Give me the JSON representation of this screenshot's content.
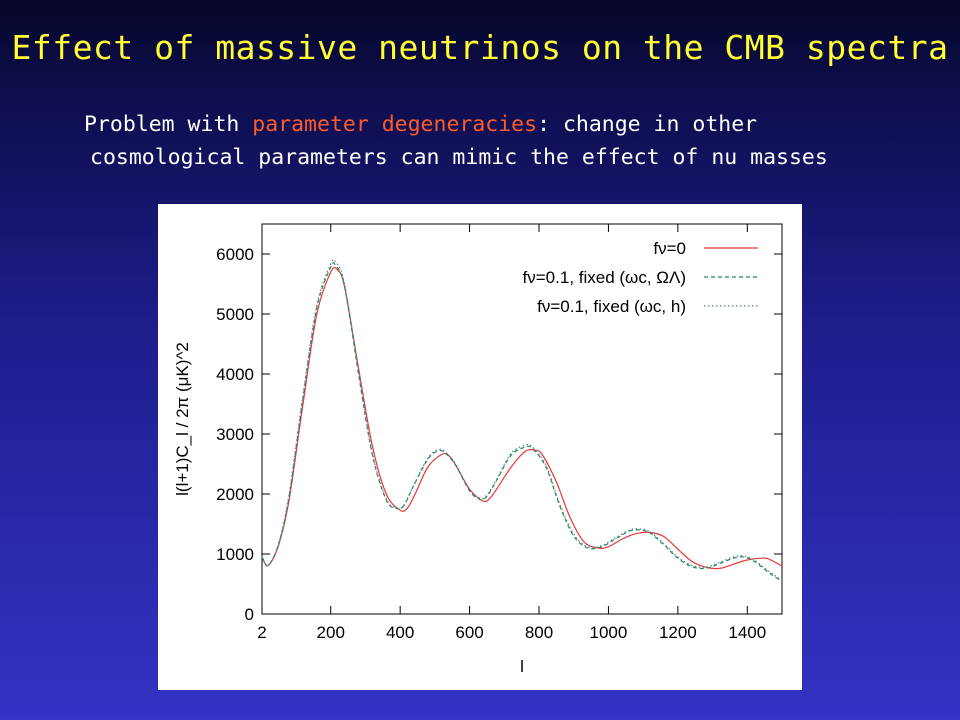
{
  "slide": {
    "title": "Effect of massive neutrinos on the CMB spectra",
    "subtitle_pre": "Problem with ",
    "subtitle_highlight": "parameter degeneracies",
    "subtitle_post": ": change in other",
    "subtitle_line2": "cosmological parameters can mimic the effect of nu masses",
    "colors": {
      "title": "#ffff33",
      "highlight": "#ff5a2a",
      "text": "#ffffff"
    }
  },
  "chart_data": {
    "type": "line",
    "xlabel": "l",
    "ylabel": "l(l+1)C_l / 2π (μK)^2",
    "xlim": [
      2,
      1500
    ],
    "ylim": [
      0,
      6500
    ],
    "x_ticks": [
      "2",
      "200",
      "400",
      "600",
      "800",
      "1000",
      "1200",
      "1400"
    ],
    "y_ticks": [
      "0",
      "1000",
      "2000",
      "3000",
      "4000",
      "5000",
      "6000"
    ],
    "legend_position": "top-right",
    "grid": false,
    "series": [
      {
        "name": "fν=0",
        "color": "#e8383a",
        "style": "solid",
        "x": [
          2,
          20,
          50,
          80,
          120,
          160,
          200,
          220,
          240,
          280,
          320,
          360,
          400,
          420,
          440,
          480,
          520,
          540,
          560,
          600,
          640,
          660,
          680,
          720,
          760,
          790,
          810,
          850,
          890,
          930,
          970,
          1000,
          1040,
          1080,
          1120,
          1160,
          1200,
          1240,
          1280,
          1320,
          1360,
          1400,
          1440,
          1460,
          1500
        ],
        "y": [
          950,
          810,
          1150,
          1900,
          3500,
          5000,
          5700,
          5730,
          5450,
          4100,
          2800,
          2000,
          1730,
          1760,
          1960,
          2450,
          2660,
          2640,
          2480,
          2080,
          1880,
          1940,
          2100,
          2450,
          2710,
          2730,
          2650,
          2200,
          1600,
          1200,
          1100,
          1120,
          1250,
          1340,
          1360,
          1290,
          1080,
          880,
          780,
          760,
          830,
          900,
          930,
          920,
          800
        ]
      },
      {
        "name": "fν=0.1, fixed (ωc, ΩΛ)",
        "color": "#1e8a5a",
        "style": "dashed",
        "x": [
          2,
          20,
          50,
          80,
          120,
          160,
          200,
          215,
          240,
          280,
          320,
          360,
          390,
          410,
          440,
          480,
          510,
          530,
          560,
          600,
          630,
          650,
          680,
          720,
          760,
          780,
          820,
          860,
          900,
          940,
          980,
          1020,
          1060,
          1090,
          1120,
          1160,
          1200,
          1240,
          1280,
          1320,
          1360,
          1390,
          1420,
          1460,
          1500
        ],
        "y": [
          950,
          810,
          1170,
          1950,
          3600,
          5100,
          5780,
          5800,
          5450,
          4000,
          2650,
          1900,
          1760,
          1800,
          2150,
          2580,
          2720,
          2680,
          2480,
          2050,
          1910,
          1960,
          2250,
          2650,
          2780,
          2760,
          2450,
          1800,
          1300,
          1100,
          1120,
          1250,
          1380,
          1400,
          1350,
          1150,
          930,
          790,
          760,
          840,
          930,
          950,
          880,
          700,
          540
        ]
      },
      {
        "name": "fν=0.1, fixed (ωc, h)",
        "color": "#5b7d96",
        "style": "dotted",
        "x": [
          2,
          20,
          50,
          80,
          120,
          160,
          200,
          215,
          240,
          280,
          320,
          360,
          390,
          410,
          440,
          480,
          510,
          530,
          560,
          600,
          630,
          650,
          680,
          720,
          760,
          780,
          820,
          860,
          900,
          940,
          980,
          1020,
          1060,
          1090,
          1120,
          1160,
          1200,
          1240,
          1280,
          1320,
          1360,
          1390,
          1420,
          1460,
          1500
        ],
        "y": [
          950,
          810,
          1180,
          2000,
          3650,
          5150,
          5830,
          5860,
          5500,
          4050,
          2680,
          1920,
          1770,
          1810,
          2160,
          2600,
          2740,
          2700,
          2500,
          2070,
          1930,
          1980,
          2270,
          2680,
          2810,
          2790,
          2480,
          1830,
          1330,
          1120,
          1140,
          1270,
          1400,
          1420,
          1370,
          1170,
          950,
          810,
          780,
          860,
          950,
          970,
          900,
          720,
          560
        ]
      }
    ]
  }
}
